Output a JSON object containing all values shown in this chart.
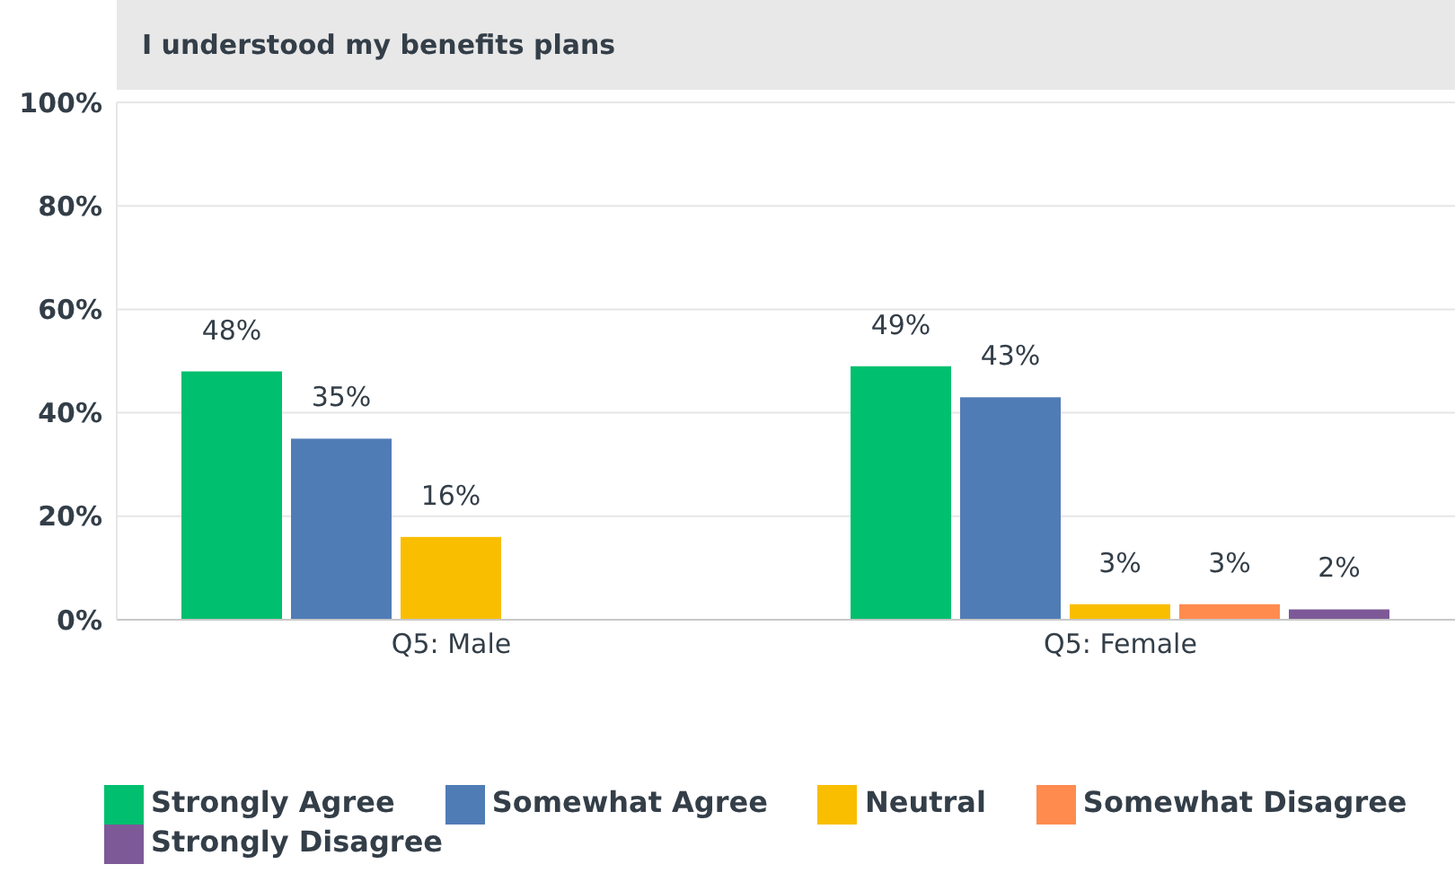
{
  "chart_data": {
    "type": "bar",
    "title": "I understood my benefits plans",
    "categories": [
      "Q5: Male",
      "Q5: Female"
    ],
    "series": [
      {
        "name": "Strongly Agree",
        "color": "#00bf6f",
        "values": [
          48,
          49
        ],
        "value_labels": [
          "48%",
          "49%"
        ]
      },
      {
        "name": "Somewhat Agree",
        "color": "#507cb6",
        "values": [
          35,
          43
        ],
        "value_labels": [
          "35%",
          "43%"
        ]
      },
      {
        "name": "Neutral",
        "color": "#f9be00",
        "values": [
          16,
          3
        ],
        "value_labels": [
          "16%",
          "3%"
        ]
      },
      {
        "name": "Somewhat Disagree",
        "color": "#ff8b4f",
        "values": [
          null,
          3
        ],
        "value_labels": [
          null,
          "3%"
        ]
      },
      {
        "name": "Strongly Disagree",
        "color": "#7d5a97",
        "values": [
          null,
          2
        ],
        "value_labels": [
          null,
          "2%"
        ]
      }
    ],
    "ylim": [
      0,
      100
    ],
    "yticks": [
      {
        "value": 0,
        "label": "0%"
      },
      {
        "value": 20,
        "label": "20%"
      },
      {
        "value": 40,
        "label": "40%"
      },
      {
        "value": 60,
        "label": "60%"
      },
      {
        "value": 80,
        "label": "80%"
      },
      {
        "value": 100,
        "label": "100%"
      }
    ],
    "grid": "y",
    "legend": "bottom"
  }
}
